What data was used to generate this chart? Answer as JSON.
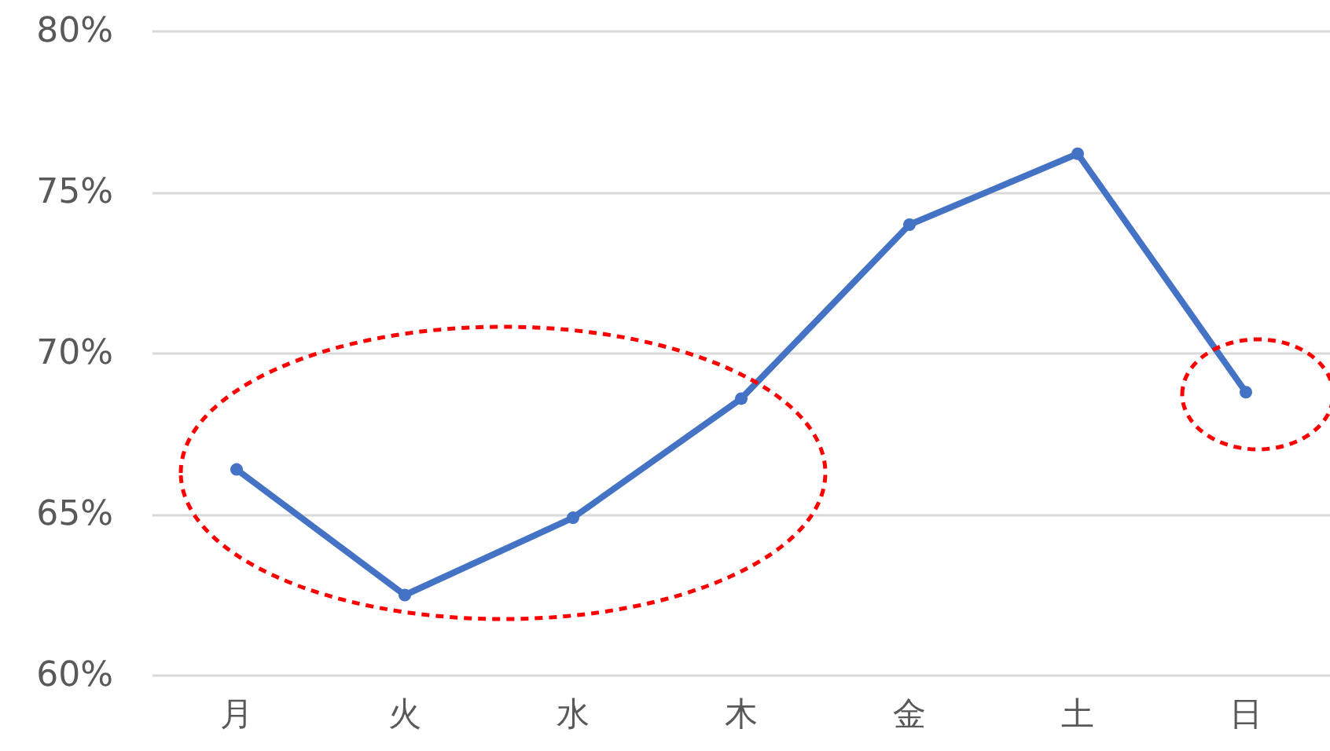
{
  "chart_data": {
    "type": "line",
    "categories": [
      "月",
      "火",
      "水",
      "木",
      "金",
      "土",
      "日"
    ],
    "series": [
      {
        "color": "#4472c4",
        "values": [
          66.4,
          62.5,
          64.9,
          68.6,
          74.0,
          76.2,
          68.8
        ]
      }
    ],
    "ylim": [
      60,
      80
    ],
    "yticks": [
      {
        "value": 60,
        "label": "60%"
      },
      {
        "value": 65,
        "label": "65%"
      },
      {
        "value": 70,
        "label": "70%"
      },
      {
        "value": 75,
        "label": "75%"
      },
      {
        "value": 80,
        "label": "80%"
      }
    ],
    "grid": "y",
    "marker": "circle",
    "line_style": "solid"
  }
}
